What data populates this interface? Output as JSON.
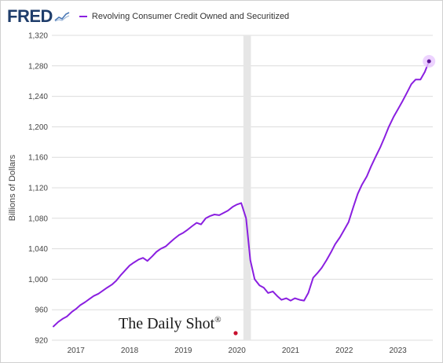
{
  "header": {
    "logo_text": "FRED",
    "logo_icon": "sparkline-icon"
  },
  "colors": {
    "series": "#8a1fe0",
    "recession": "#e6e6e6",
    "grid": "#dcdcdc",
    "logo": "#1f3d6b"
  },
  "watermark": {
    "text": "The Daily Shot",
    "mark": "®"
  },
  "chart_data": {
    "type": "line",
    "title": "",
    "xlabel": "",
    "ylabel": "Billions of Dollars",
    "ylim": [
      920,
      1320
    ],
    "yticks": [
      920,
      960,
      1000,
      1040,
      1080,
      1120,
      1160,
      1200,
      1240,
      1280,
      1320
    ],
    "xlim": [
      2016.55,
      2023.65
    ],
    "xticks": [
      {
        "value": 2017,
        "label": "2017"
      },
      {
        "value": 2018,
        "label": "2018"
      },
      {
        "value": 2019,
        "label": "2019"
      },
      {
        "value": 2020,
        "label": "2020"
      },
      {
        "value": 2021,
        "label": "2021"
      },
      {
        "value": 2022,
        "label": "2022"
      },
      {
        "value": 2023,
        "label": "2023"
      }
    ],
    "grid": "horizontal",
    "legend": "top-left",
    "recession": [
      2020.12,
      2020.26
    ],
    "series": [
      {
        "name": "Revolving Consumer Credit Owned and Securitized",
        "x": [
          2016.58,
          2016.67,
          2016.75,
          2016.83,
          2016.92,
          2017.0,
          2017.08,
          2017.17,
          2017.25,
          2017.33,
          2017.42,
          2017.5,
          2017.58,
          2017.67,
          2017.75,
          2017.83,
          2017.92,
          2018.0,
          2018.08,
          2018.17,
          2018.25,
          2018.33,
          2018.42,
          2018.5,
          2018.58,
          2018.67,
          2018.75,
          2018.83,
          2018.92,
          2019.0,
          2019.08,
          2019.17,
          2019.25,
          2019.33,
          2019.42,
          2019.5,
          2019.58,
          2019.67,
          2019.75,
          2019.83,
          2019.92,
          2020.0,
          2020.08,
          2020.17,
          2020.25,
          2020.33,
          2020.42,
          2020.5,
          2020.58,
          2020.67,
          2020.75,
          2020.83,
          2020.92,
          2021.0,
          2021.08,
          2021.17,
          2021.25,
          2021.33,
          2021.42,
          2021.5,
          2021.58,
          2021.67,
          2021.75,
          2021.83,
          2021.92,
          2022.0,
          2022.08,
          2022.17,
          2022.25,
          2022.33,
          2022.42,
          2022.5,
          2022.58,
          2022.67,
          2022.75,
          2022.83,
          2022.92,
          2023.0,
          2023.08,
          2023.17,
          2023.25,
          2023.33,
          2023.42,
          2023.5,
          2023.58
        ],
        "values": [
          938,
          944,
          948,
          951,
          957,
          961,
          966,
          970,
          974,
          978,
          981,
          985,
          989,
          993,
          998,
          1005,
          1012,
          1018,
          1022,
          1026,
          1028,
          1024,
          1030,
          1036,
          1040,
          1043,
          1048,
          1053,
          1058,
          1061,
          1065,
          1070,
          1074,
          1072,
          1080,
          1083,
          1085,
          1084,
          1087,
          1090,
          1095,
          1098,
          1100,
          1080,
          1025,
          1000,
          992,
          989,
          982,
          984,
          978,
          973,
          975,
          972,
          975,
          973,
          972,
          982,
          1002,
          1008,
          1015,
          1025,
          1035,
          1046,
          1055,
          1065,
          1075,
          1095,
          1112,
          1124,
          1135,
          1148,
          1160,
          1173,
          1186,
          1200,
          1213,
          1223,
          1233,
          1245,
          1256,
          1262,
          1262,
          1272,
          1286
        ]
      }
    ]
  }
}
